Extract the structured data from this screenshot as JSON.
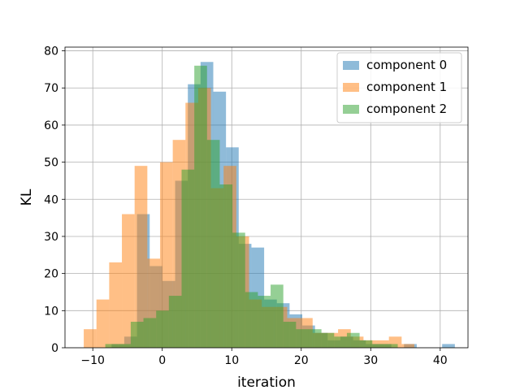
{
  "chart_data": {
    "type": "bar",
    "xlabel": "iteration",
    "ylabel": "KL",
    "xlim": [
      -14,
      44
    ],
    "ylim": [
      0,
      81
    ],
    "grid": true,
    "legend_position": "top-right",
    "x_ticks": [
      -10,
      0,
      10,
      20,
      30,
      40
    ],
    "y_ticks": [
      0,
      10,
      20,
      30,
      40,
      50,
      60,
      70,
      80
    ],
    "bin_width": 1.83,
    "series": [
      {
        "name": "component 0",
        "color": "#1f77b4",
        "bin_starts": [
          -7.3,
          -5.47,
          -3.64,
          -1.81,
          0.02,
          1.85,
          3.68,
          5.51,
          7.34,
          9.17,
          11.0,
          12.83,
          14.66,
          16.49,
          18.32,
          20.15,
          21.98,
          23.81,
          25.64,
          27.47,
          29.3,
          31.13,
          32.96,
          34.79,
          36.62,
          38.45,
          40.28
        ],
        "values": [
          1,
          3,
          36,
          22,
          18,
          45,
          71,
          77,
          69,
          54,
          28,
          27,
          13,
          12,
          9,
          6,
          4,
          2,
          3,
          2,
          1,
          1,
          0,
          1,
          0,
          0,
          1
        ]
      },
      {
        "name": "component 1",
        "color": "#ff7f0e",
        "bin_starts": [
          -11.3,
          -9.47,
          -7.64,
          -5.81,
          -3.98,
          -2.15,
          -0.32,
          1.51,
          3.34,
          5.17,
          7.0,
          8.83,
          10.66,
          12.49,
          14.32,
          16.15,
          17.98,
          19.81,
          21.64,
          23.47,
          25.3,
          27.13,
          28.96,
          30.79,
          32.62,
          34.45
        ],
        "values": [
          5,
          13,
          23,
          36,
          49,
          24,
          50,
          56,
          66,
          70,
          43,
          49,
          30,
          13,
          11,
          11,
          8,
          8,
          4,
          4,
          5,
          3,
          2,
          2,
          3,
          1
        ]
      },
      {
        "name": "component 2",
        "color": "#2ca02c",
        "bin_starts": [
          -8.2,
          -6.37,
          -4.54,
          -2.71,
          -0.88,
          0.95,
          2.78,
          4.61,
          6.44,
          8.27,
          10.1,
          11.93,
          13.76,
          15.59,
          17.42,
          19.25,
          21.08,
          22.91,
          24.74,
          26.57,
          28.4,
          30.23,
          32.06
        ],
        "values": [
          1,
          1,
          7,
          8,
          10,
          14,
          48,
          76,
          56,
          44,
          31,
          15,
          14,
          17,
          7,
          5,
          5,
          4,
          3,
          4,
          2,
          1,
          1
        ]
      }
    ]
  }
}
